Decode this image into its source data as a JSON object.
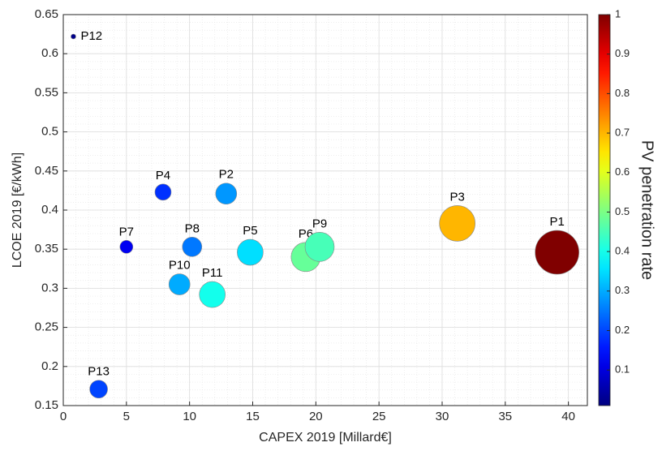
{
  "chart_data": {
    "type": "scatter",
    "x_label": "CAPEX 2019 [Millard€]",
    "y_label": "LCOE 2019 [€/kWh]",
    "colorbar_label": "PV penetration rate",
    "labels": [
      "P12",
      "P13",
      "P7",
      "P4",
      "P8",
      "P10",
      "P2",
      "P11",
      "P5",
      "P6",
      "P9",
      "P3",
      "P1"
    ],
    "x": [
      0.8,
      2.8,
      5.0,
      7.9,
      10.2,
      9.2,
      12.9,
      11.8,
      14.8,
      19.2,
      20.3,
      31.2,
      39.1
    ],
    "y": [
      0.622,
      0.171,
      0.353,
      0.423,
      0.353,
      0.305,
      0.421,
      0.292,
      0.346,
      0.34,
      0.353,
      0.383,
      0.346
    ],
    "sizes": [
      3,
      11,
      8,
      10,
      12,
      13,
      13,
      16,
      16,
      18,
      18,
      22,
      27
    ],
    "color_values": [
      0.02,
      0.2,
      0.12,
      0.18,
      0.25,
      0.3,
      0.28,
      0.4,
      0.35,
      0.48,
      0.45,
      0.7,
      1
    ],
    "colormap": "jet",
    "clim": [
      0.01,
      1
    ],
    "cticks": [
      0.1,
      0.2,
      0.3,
      0.4,
      0.5,
      0.6,
      0.7,
      0.8,
      0.9,
      1
    ],
    "xlim": [
      0,
      41.5
    ],
    "xticks": [
      0,
      5,
      10,
      15,
      20,
      25,
      30,
      35,
      40
    ],
    "ylim": [
      0.15,
      0.65
    ],
    "yticks": [
      0.15,
      0.2,
      0.25,
      0.3,
      0.35,
      0.4,
      0.45,
      0.5,
      0.55,
      0.6,
      0.65
    ],
    "grid": true,
    "minor_grid": true
  }
}
